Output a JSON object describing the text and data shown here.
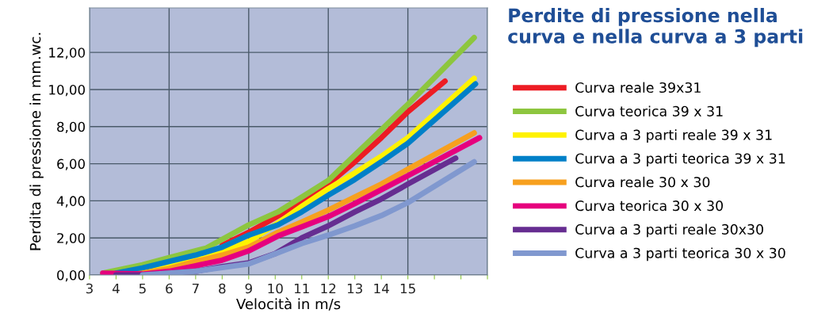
{
  "chart_data": {
    "type": "line",
    "title": "Perdite di pressione nella curva e nella curva a 3 parti",
    "xlabel": "Velocità in m/s",
    "ylabel": "Perdita di pressione in mm.wc.",
    "xlim": [
      3,
      18
    ],
    "xticks": [
      3,
      4,
      5,
      6,
      7,
      8,
      9,
      10,
      11,
      12,
      13,
      14,
      15,
      {
        "value": 16,
        "label": null
      },
      {
        "value": 17,
        "label": null
      },
      {
        "value": 18,
        "label": null
      }
    ],
    "ylim": [
      0,
      14.4
    ],
    "yticks": [
      {
        "value": 0,
        "label": "0,00"
      },
      {
        "value": 2,
        "label": "2,00"
      },
      {
        "value": 4,
        "label": "4,00"
      },
      {
        "value": 6,
        "label": "6,00"
      },
      {
        "value": 8,
        "label": "8,00"
      },
      {
        "value": 10,
        "label": "10,00"
      },
      {
        "value": 12,
        "label": "12,00"
      }
    ],
    "grid": true,
    "legend": "right",
    "marker": "none",
    "line_style": "solid",
    "series": [
      {
        "name": "Curva reale 39x31",
        "color": "#ed1c24",
        "x": [
          8,
          9,
          11,
          12,
          13,
          14,
          15,
          16.4
        ],
        "values": [
          1.6,
          2.3,
          3.9,
          4.9,
          6.1,
          7.4,
          8.8,
          10.45
        ]
      },
      {
        "name": "Curva teorica 39 x 31",
        "color": "#8dc63f",
        "x": [
          3.5,
          5,
          6,
          7.4,
          9,
          10.1,
          11,
          12,
          15,
          17.5
        ],
        "values": [
          0.1,
          0.55,
          0.94,
          1.45,
          2.7,
          3.4,
          4.2,
          5.1,
          9.2,
          12.8
        ]
      },
      {
        "name": "Curva a 3 parti reale 39 x 31",
        "color": "#fff200",
        "x": [
          5,
          6,
          7,
          8,
          9,
          10.1,
          11,
          12,
          13,
          14,
          15,
          17.5
        ],
        "values": [
          0.3,
          0.6,
          0.95,
          1.3,
          1.8,
          2.8,
          3.7,
          4.65,
          5.5,
          6.4,
          7.4,
          10.6
        ]
      },
      {
        "name": "Curva a 3 parti teorica 39 x 31",
        "color": "#0080c8",
        "x": [
          4,
          5,
          6,
          7,
          8,
          9,
          10.1,
          11,
          12,
          13,
          14,
          15,
          17.55
        ],
        "values": [
          0.1,
          0.38,
          0.73,
          1.07,
          1.5,
          2.15,
          2.7,
          3.4,
          4.3,
          5.15,
          6.1,
          7.1,
          10.3
        ]
      },
      {
        "name": "Curva reale 30 x 30",
        "color": "#f7a01e",
        "x": [
          4.5,
          5,
          6,
          7,
          8,
          9,
          10.1,
          11,
          12,
          13,
          14,
          15,
          17.5
        ],
        "values": [
          0.0,
          0.1,
          0.35,
          0.73,
          1.07,
          1.5,
          2.3,
          2.86,
          3.5,
          4.2,
          4.9,
          5.7,
          7.66
        ]
      },
      {
        "name": "Curva teorica 30 x 30",
        "color": "#e6007e",
        "x": [
          3.5,
          5,
          6,
          7,
          8,
          9,
          10.1,
          11,
          12,
          13,
          14,
          15,
          17.7
        ],
        "values": [
          0.1,
          0.05,
          0.2,
          0.5,
          0.8,
          1.3,
          2.1,
          2.6,
          3.15,
          3.85,
          4.6,
          5.35,
          7.4
        ]
      },
      {
        "name": "Curva a 3 parti reale 30x30",
        "color": "#662d91",
        "x": [
          4,
          5,
          6,
          7,
          8,
          9,
          10,
          11,
          12,
          13,
          14,
          15,
          16.8
        ],
        "values": [
          0.0,
          0.0,
          0.1,
          0.2,
          0.45,
          0.65,
          1.15,
          2.0,
          2.65,
          3.4,
          4.1,
          4.9,
          6.3
        ]
      },
      {
        "name": "Curva a 3 parti teorica 30 x 30",
        "color": "#8098cf",
        "x": [
          5,
          6,
          7,
          8,
          9,
          10.1,
          11,
          12,
          13,
          14,
          15,
          17.5
        ],
        "values": [
          0.0,
          0.1,
          0.2,
          0.4,
          0.6,
          1.2,
          1.7,
          2.15,
          2.65,
          3.2,
          3.9,
          6.1
        ]
      }
    ]
  }
}
